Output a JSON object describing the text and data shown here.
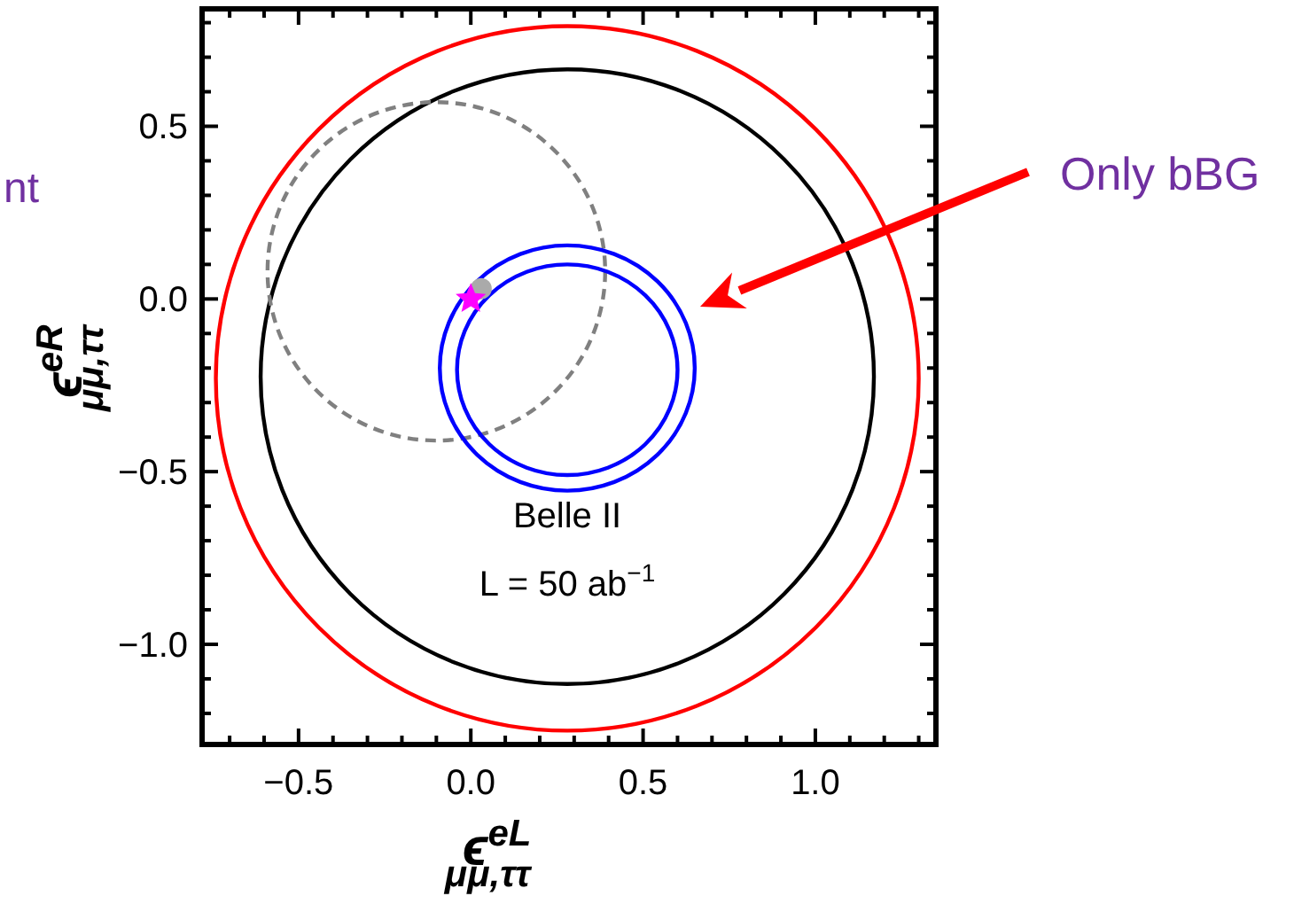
{
  "chart_data": {
    "type": "scatter",
    "xlabel": "ϵ$^{eL}$$_{μμ,ττ}$",
    "ylabel": "ϵ$^{eR}$$_{μμ,ττ}$",
    "xlim": [
      -0.78,
      1.35
    ],
    "ylim": [
      -1.29,
      0.84
    ],
    "xticks": [
      {
        "value": -0.7,
        "label": null
      },
      {
        "value": -0.6,
        "label": null
      },
      {
        "value": -0.5,
        "label": "−0.5"
      },
      {
        "value": -0.4,
        "label": null
      },
      {
        "value": -0.3,
        "label": null
      },
      {
        "value": -0.2,
        "label": null
      },
      {
        "value": -0.1,
        "label": null
      },
      {
        "value": 0,
        "label": "0.0"
      },
      {
        "value": 0.1,
        "label": null
      },
      {
        "value": 0.2,
        "label": null
      },
      {
        "value": 0.3,
        "label": null
      },
      {
        "value": 0.4,
        "label": null
      },
      {
        "value": 0.5,
        "label": "0.5"
      },
      {
        "value": 0.6,
        "label": null
      },
      {
        "value": 0.7,
        "label": null
      },
      {
        "value": 0.8,
        "label": null
      },
      {
        "value": 0.9,
        "label": null
      },
      {
        "value": 1,
        "label": "1.0"
      },
      {
        "value": 1.1,
        "label": null
      },
      {
        "value": 1.2,
        "label": null
      },
      {
        "value": 1.3,
        "label": null
      }
    ],
    "yticks": [
      {
        "value": -1.2,
        "label": null
      },
      {
        "value": -1.1,
        "label": null
      },
      {
        "value": -1,
        "label": "−1.0"
      },
      {
        "value": -0.9,
        "label": null
      },
      {
        "value": -0.8,
        "label": null
      },
      {
        "value": -0.7,
        "label": null
      },
      {
        "value": -0.6,
        "label": null
      },
      {
        "value": -0.5,
        "label": "−0.5"
      },
      {
        "value": -0.4,
        "label": null
      },
      {
        "value": -0.3,
        "label": null
      },
      {
        "value": -0.2,
        "label": null
      },
      {
        "value": -0.1,
        "label": null
      },
      {
        "value": 0,
        "label": "0.0"
      },
      {
        "value": 0.1,
        "label": null
      },
      {
        "value": 0.2,
        "label": null
      },
      {
        "value": 0.3,
        "label": null
      },
      {
        "value": 0.4,
        "label": null
      },
      {
        "value": 0.5,
        "label": "0.5"
      },
      {
        "value": 0.6,
        "label": null
      },
      {
        "value": 0.7,
        "label": null
      },
      {
        "value": 0.8,
        "label": null
      }
    ],
    "grid": false,
    "series": [
      {
        "color": "#aaaaaa",
        "marker": "circle",
        "x": [
          0.03
        ],
        "values": [
          0.03
        ]
      },
      {
        "color": "#ff00ff",
        "marker": "star",
        "x": [
          0
        ],
        "values": [
          0
        ]
      }
    ],
    "annotations": [
      "Belle II",
      "L = 50 ab$^{−1}$",
      "nt",
      "Only bBG"
    ]
  }
}
